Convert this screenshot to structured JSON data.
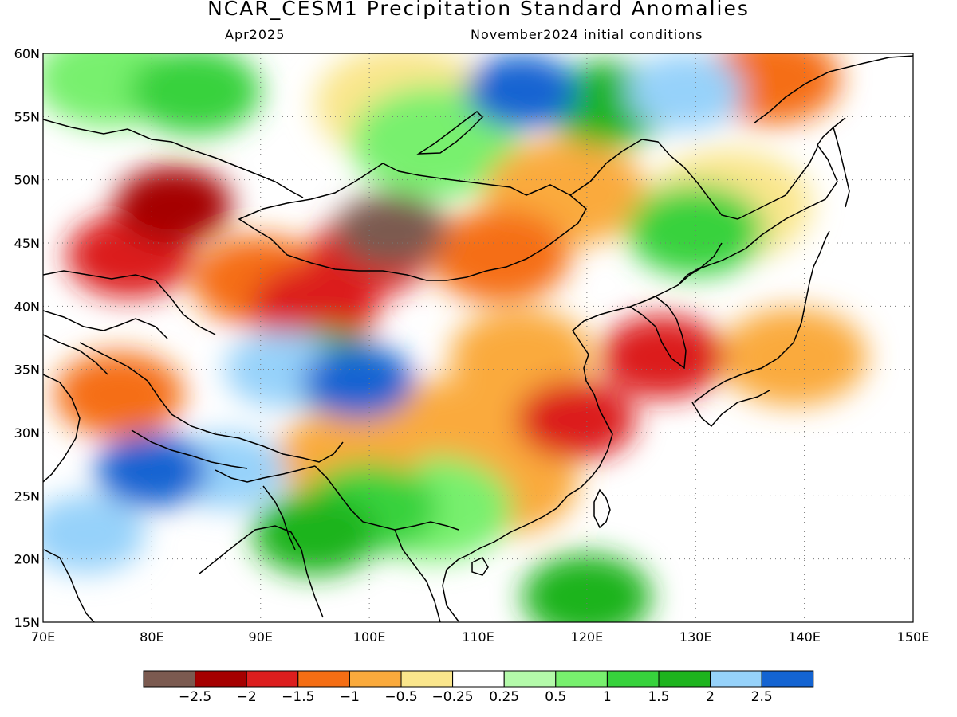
{
  "title": "NCAR_CESM1 Precipitation Standard Anomalies",
  "subtitle_left": "Apr2025",
  "subtitle_right": "November2024 initial conditions",
  "map": {
    "lon_range": [
      70,
      150
    ],
    "lat_range": [
      15,
      60
    ],
    "lon_ticks": [
      "70E",
      "80E",
      "90E",
      "100E",
      "110E",
      "120E",
      "130E",
      "140E",
      "150E"
    ],
    "lat_ticks": [
      "60N",
      "55N",
      "50N",
      "45N",
      "40N",
      "35N",
      "30N",
      "25N",
      "20N",
      "15N"
    ],
    "grid": "dotted"
  },
  "legend": {
    "colors": [
      "#7b5a50",
      "#a50000",
      "#dc1e1e",
      "#f56e14",
      "#faaa3c",
      "#fae68c",
      "#ffffff",
      "#b4faaa",
      "#78f06e",
      "#37d23c",
      "#1eb41e",
      "#96d2fa",
      "#1464d2"
    ],
    "labels": [
      "−2.5",
      "−2",
      "−1.5",
      "−1",
      "−0.5",
      "−0.25",
      "0.25",
      "0.5",
      "1",
      "1.5",
      "2",
      "2.5"
    ]
  },
  "chart_data": {
    "type": "heatmap",
    "title": "NCAR_CESM1 Precipitation Standard Anomalies",
    "subtitle": "Apr2025 — November2024 initial conditions",
    "xlim": [
      70,
      150
    ],
    "ylim": [
      15,
      60
    ],
    "scale_bounds": [
      -2.5,
      -2,
      -1.5,
      -1,
      -0.5,
      -0.25,
      0.25,
      0.5,
      1,
      1.5,
      2,
      2.5
    ],
    "regions": [
      {
        "lon": 102,
        "lat": 46,
        "value": -2.6
      },
      {
        "lon": 82,
        "lat": 48,
        "value": -2.2
      },
      {
        "lon": 100,
        "lat": 44,
        "value": -2.0
      },
      {
        "lon": 119,
        "lat": 31,
        "value": -2.0
      },
      {
        "lon": 78,
        "lat": 44,
        "value": -1.6
      },
      {
        "lon": 95,
        "lat": 40,
        "value": -1.6
      },
      {
        "lon": 127,
        "lat": 36,
        "value": -1.7
      },
      {
        "lon": 77,
        "lat": 33,
        "value": -1.5
      },
      {
        "lon": 90,
        "lat": 42,
        "value": -1.2
      },
      {
        "lon": 112,
        "lat": 44,
        "value": -1.1
      },
      {
        "lon": 114,
        "lat": 36,
        "value": -1.0
      },
      {
        "lon": 137,
        "lat": 58,
        "value": -1.2
      },
      {
        "lon": 98,
        "lat": 28,
        "value": -1.0
      },
      {
        "lon": 139,
        "lat": 36,
        "value": -0.9
      },
      {
        "lon": 118,
        "lat": 49,
        "value": -0.6
      },
      {
        "lon": 133,
        "lat": 48,
        "value": -0.5
      },
      {
        "lon": 108,
        "lat": 30,
        "value": -0.6
      },
      {
        "lon": 112,
        "lat": 26,
        "value": -0.7
      },
      {
        "lon": 103,
        "lat": 56,
        "value": -0.4
      },
      {
        "lon": 96,
        "lat": 35,
        "value": 1.8
      },
      {
        "lon": 99,
        "lat": 34,
        "value": 2.6
      },
      {
        "lon": 92,
        "lat": 35,
        "value": 2.3
      },
      {
        "lon": 80,
        "lat": 27,
        "value": 2.6
      },
      {
        "lon": 87,
        "lat": 27,
        "value": 2.3
      },
      {
        "lon": 95,
        "lat": 22,
        "value": 1.7
      },
      {
        "lon": 74,
        "lat": 22,
        "value": 2.1
      },
      {
        "lon": 100,
        "lat": 24,
        "value": 1.2
      },
      {
        "lon": 106,
        "lat": 24,
        "value": 0.7
      },
      {
        "lon": 114,
        "lat": 57,
        "value": 2.6
      },
      {
        "lon": 129,
        "lat": 57,
        "value": 2.2
      },
      {
        "lon": 122,
        "lat": 56,
        "value": 1.6
      },
      {
        "lon": 84,
        "lat": 57,
        "value": 1.4
      },
      {
        "lon": 130,
        "lat": 46,
        "value": 1.2
      },
      {
        "lon": 120,
        "lat": 17,
        "value": 1.5
      },
      {
        "lon": 76,
        "lat": 58,
        "value": 0.9
      },
      {
        "lon": 106,
        "lat": 53,
        "value": 0.5
      }
    ]
  }
}
